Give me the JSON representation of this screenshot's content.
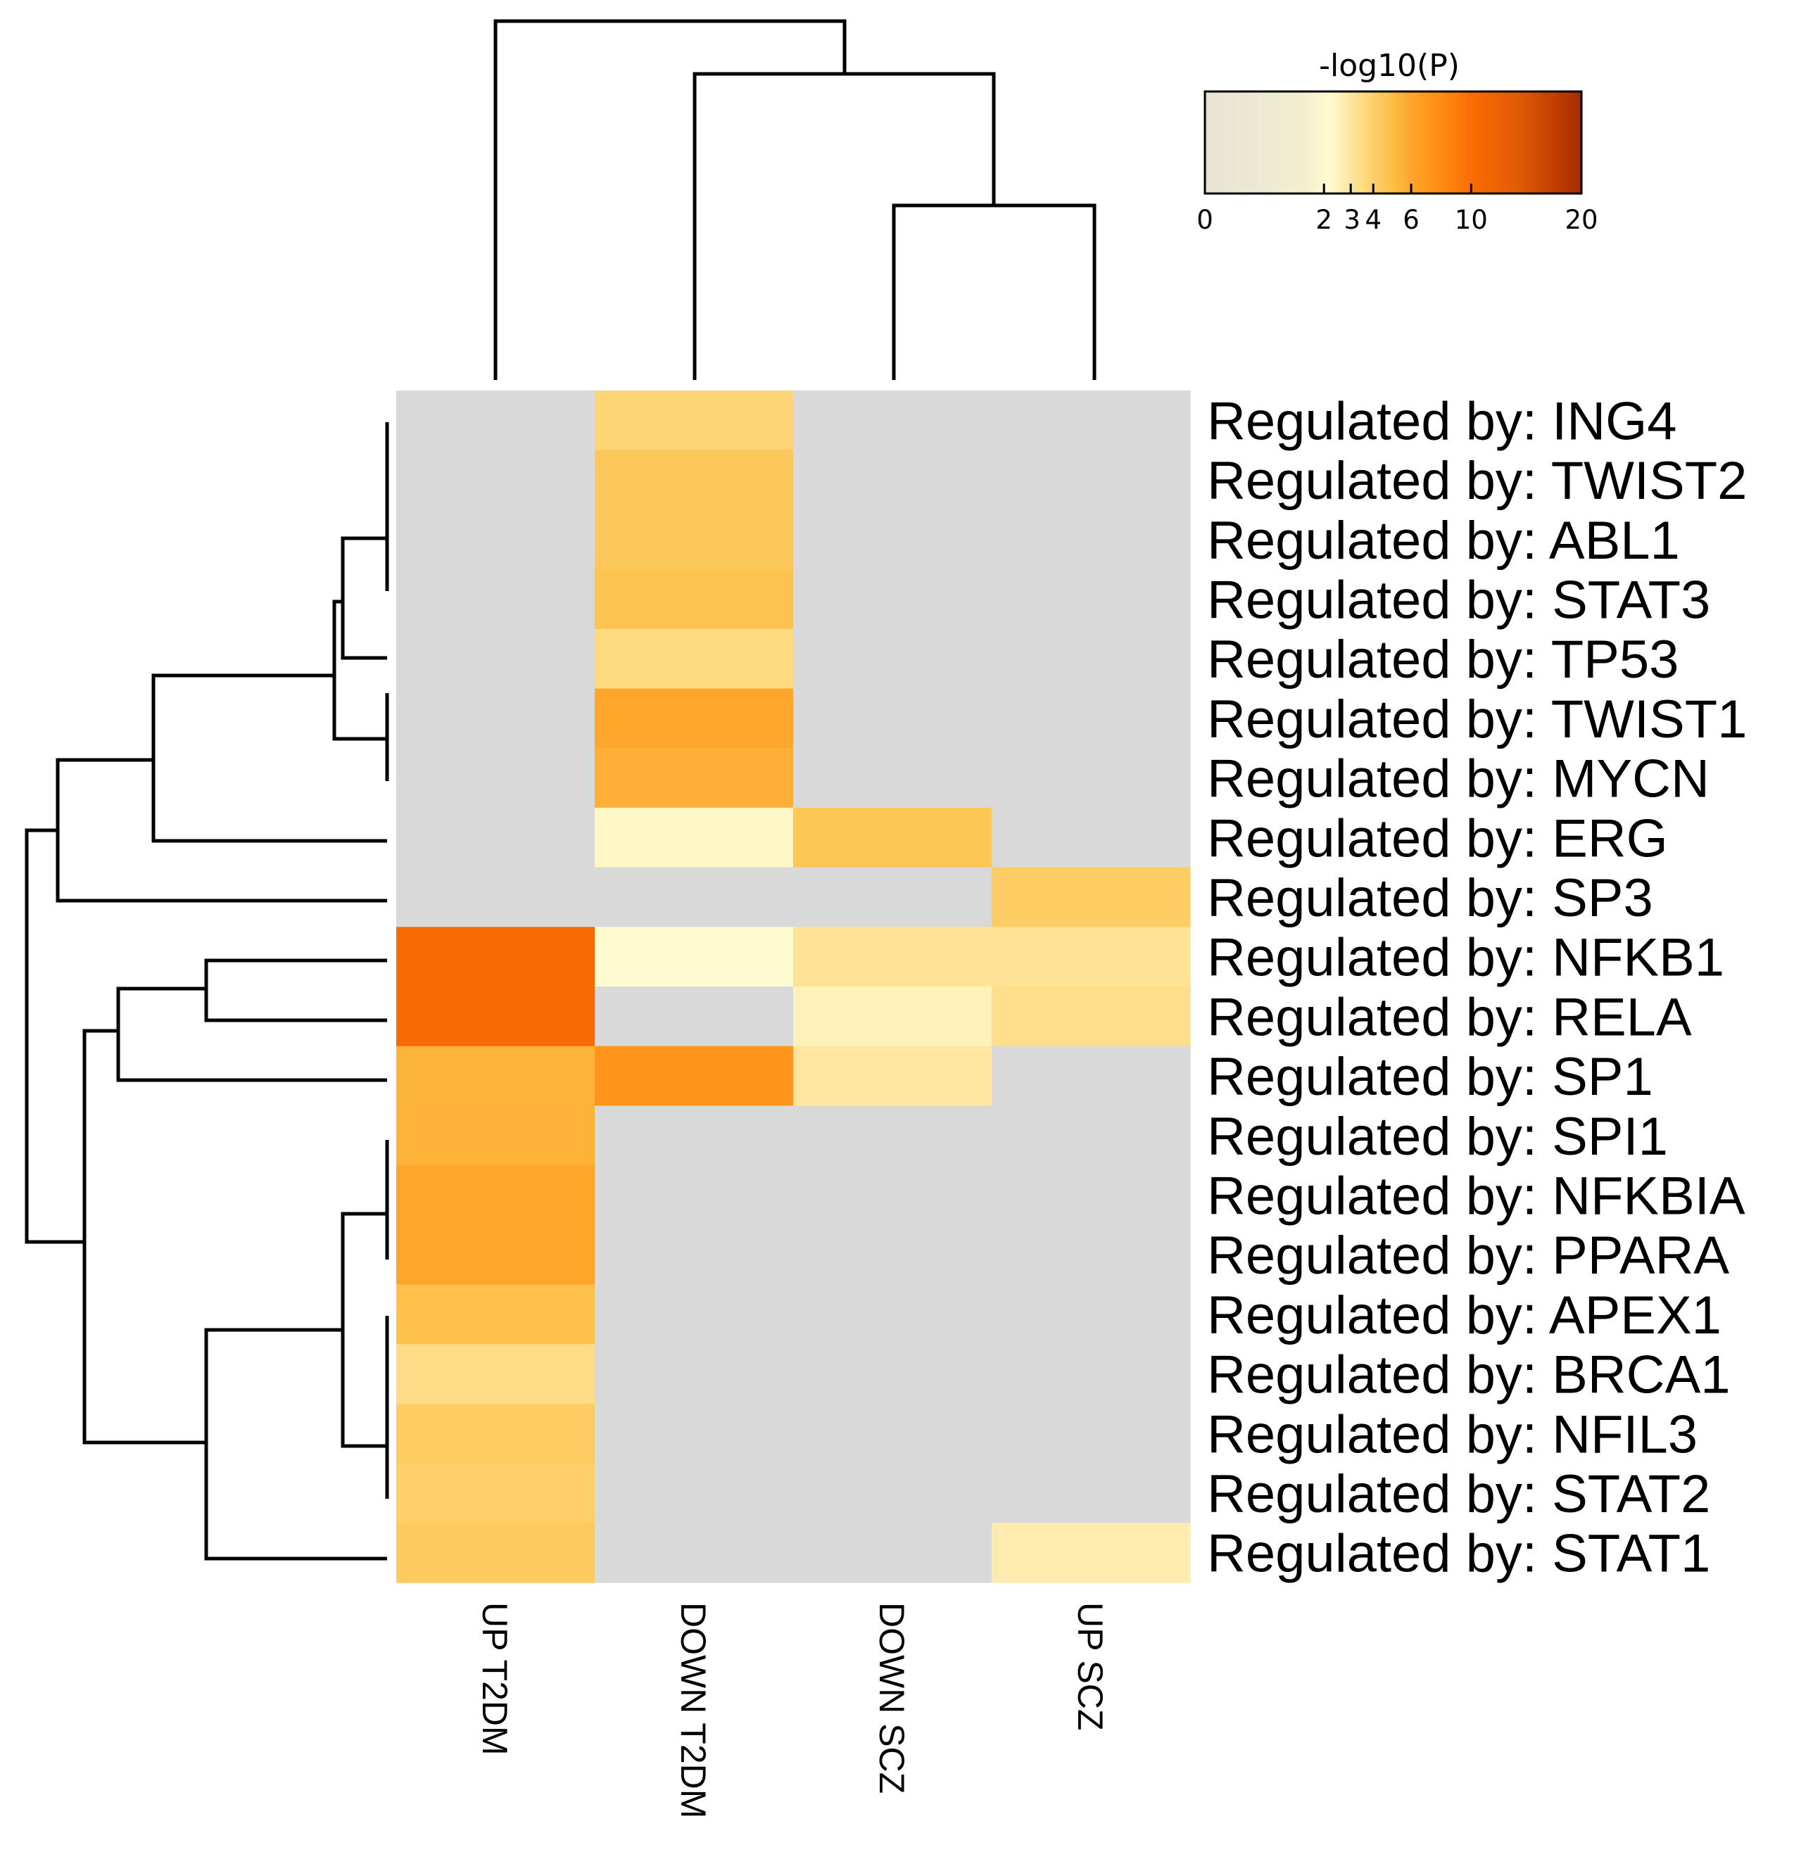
{
  "chart_data": {
    "type": "heatmap",
    "columns": [
      "UP T2DM",
      "DOWN T2DM",
      "DOWN SCZ",
      "UP SCZ"
    ],
    "rows": [
      {
        "label": "Regulated by: ING4",
        "values": [
          null,
          3.8,
          null,
          null
        ]
      },
      {
        "label": "Regulated by: TWIST2",
        "values": [
          null,
          4.4,
          null,
          null
        ]
      },
      {
        "label": "Regulated by: ABL1",
        "values": [
          null,
          4.4,
          null,
          null
        ]
      },
      {
        "label": "Regulated by: STAT3",
        "values": [
          null,
          4.7,
          null,
          null
        ]
      },
      {
        "label": "Regulated by: TP53",
        "values": [
          null,
          3.6,
          null,
          null
        ]
      },
      {
        "label": "Regulated by: TWIST1",
        "values": [
          null,
          6.0,
          null,
          null
        ]
      },
      {
        "label": "Regulated by: MYCN",
        "values": [
          null,
          5.6,
          null,
          null
        ]
      },
      {
        "label": "Regulated by: ERG",
        "values": [
          null,
          2.4,
          4.5,
          null
        ]
      },
      {
        "label": "Regulated by: SP3",
        "values": [
          null,
          null,
          null,
          4.2
        ]
      },
      {
        "label": "Regulated by: NFKB1",
        "values": [
          10.5,
          2.2,
          3.2,
          3.2
        ]
      },
      {
        "label": "Regulated by: RELA",
        "values": [
          10.5,
          null,
          2.6,
          3.4
        ]
      },
      {
        "label": "Regulated by: SP1",
        "values": [
          5.4,
          7.2,
          3.0,
          null
        ]
      },
      {
        "label": "Regulated by: SPI1",
        "values": [
          5.5,
          null,
          null,
          null
        ]
      },
      {
        "label": "Regulated by: NFKBIA",
        "values": [
          6.0,
          null,
          null,
          null
        ]
      },
      {
        "label": "Regulated by: PPARA",
        "values": [
          6.0,
          null,
          null,
          null
        ]
      },
      {
        "label": "Regulated by: APEX1",
        "values": [
          4.8,
          null,
          null,
          null
        ]
      },
      {
        "label": "Regulated by: BRCA1",
        "values": [
          3.5,
          null,
          null,
          null
        ]
      },
      {
        "label": "Regulated by: NFIL3",
        "values": [
          4.2,
          null,
          null,
          null
        ]
      },
      {
        "label": "Regulated by: STAT2",
        "values": [
          4.0,
          null,
          null,
          null
        ]
      },
      {
        "label": "Regulated by: STAT1",
        "values": [
          4.3,
          null,
          null,
          2.8
        ]
      }
    ],
    "missing_color": "#d9d9d9",
    "colorbar": {
      "title": "-log10(P)",
      "range": [
        0,
        20
      ],
      "ticks": [
        0,
        2,
        3,
        4,
        6,
        10,
        20
      ],
      "tick_labels": [
        "0",
        "2",
        "3",
        "4",
        "6",
        "10",
        "20"
      ],
      "stops": [
        {
          "v": 0,
          "color": "#e6e3d3"
        },
        {
          "v": 1.4,
          "color": "#f2efcf"
        },
        {
          "v": 2.2,
          "color": "#fffbd1"
        },
        {
          "v": 3,
          "color": "#fee6a1"
        },
        {
          "v": 4,
          "color": "#fdd06a"
        },
        {
          "v": 5,
          "color": "#fdbd44"
        },
        {
          "v": 6,
          "color": "#fea62b"
        },
        {
          "v": 8,
          "color": "#fe8a0f"
        },
        {
          "v": 10,
          "color": "#fb6c04"
        },
        {
          "v": 14,
          "color": "#e05a05"
        },
        {
          "v": 20,
          "color": "#a62b02"
        }
      ],
      "placement": "top-right"
    },
    "column_dendrogram": "((UP T2DM), ((DOWN T2DM), (DOWN SCZ, UP SCZ)))",
    "row_dendrogram": "(((ING4, TWIST2, ABL1, STAT3, TP53, TWIST1, MYCN), ERG), SP3), (((NFKB1, RELA), SP1), (SPI1, NFKBIA, PPARA, APEX1, BRCA1, NFIL3, STAT2), STAT1)"
  }
}
